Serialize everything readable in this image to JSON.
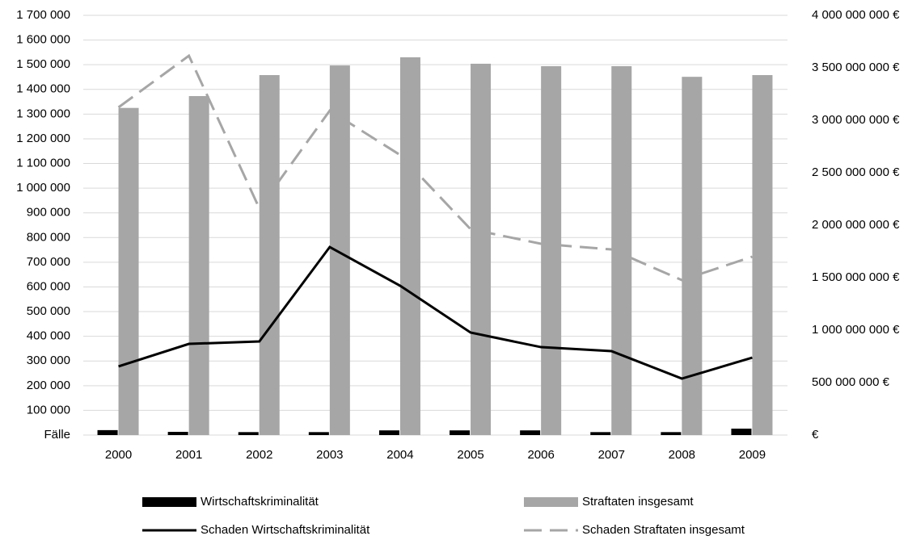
{
  "chart_data": {
    "type": "bar",
    "categories": [
      "2000",
      "2001",
      "2002",
      "2003",
      "2004",
      "2005",
      "2006",
      "2007",
      "2008",
      "2009"
    ],
    "series": [
      {
        "name": "Wirtschaftskriminalität",
        "type": "bar",
        "color": "#000000",
        "values": [
          20000,
          13000,
          12000,
          12000,
          19000,
          19000,
          19000,
          12000,
          12000,
          26000
        ]
      },
      {
        "name": "Straftaten insgesamt",
        "type": "bar",
        "color": "#a6a6a6",
        "values": [
          1325000,
          1373000,
          1458000,
          1497000,
          1530000,
          1504000,
          1494000,
          1494000,
          1451000,
          1458000
        ]
      },
      {
        "name": "Schaden Wirtschaftskriminalität",
        "type": "line",
        "axis": "y2",
        "color": "#000000",
        "dash": false,
        "values": [
          654000000,
          869000000,
          892000000,
          1792000000,
          1423000000,
          977000000,
          838000000,
          800000000,
          538000000,
          738000000
        ]
      },
      {
        "name": "Schaden Straftaten insgesamt",
        "type": "line",
        "axis": "y2",
        "color": "#a6a6a6",
        "dash": true,
        "values": [
          3123000000,
          3615000000,
          2161000000,
          3092000000,
          2669000000,
          1962000000,
          1823000000,
          1769000000,
          1477000000,
          1700000000
        ]
      }
    ],
    "ylim": [
      0,
      1700000
    ],
    "yticks": [
      {
        "value": 0,
        "label": "Fälle"
      },
      {
        "value": 100000,
        "label": "100 000"
      },
      {
        "value": 200000,
        "label": "200 000"
      },
      {
        "value": 300000,
        "label": "300 000"
      },
      {
        "value": 400000,
        "label": "400 000"
      },
      {
        "value": 500000,
        "label": "500 000"
      },
      {
        "value": 600000,
        "label": "600 000"
      },
      {
        "value": 700000,
        "label": "700 000"
      },
      {
        "value": 800000,
        "label": "800 000"
      },
      {
        "value": 900000,
        "label": "900 000"
      },
      {
        "value": 1000000,
        "label": "1 000 000"
      },
      {
        "value": 1100000,
        "label": "1 100 000"
      },
      {
        "value": 1200000,
        "label": "1 200 000"
      },
      {
        "value": 1300000,
        "label": "1 300 000"
      },
      {
        "value": 1400000,
        "label": "1 400 000"
      },
      {
        "value": 1500000,
        "label": "1 500 000"
      },
      {
        "value": 1600000,
        "label": "1 600 000"
      },
      {
        "value": 1700000,
        "label": "1 700 000"
      }
    ],
    "y2lim": [
      0,
      4000000000
    ],
    "y2ticks": [
      {
        "value": 0,
        "label": "€"
      },
      {
        "value": 500000000,
        "label": "500 000 000 €"
      },
      {
        "value": 1000000000,
        "label": "1 000 000 000 €"
      },
      {
        "value": 1500000000,
        "label": "1 500 000 000 €"
      },
      {
        "value": 2000000000,
        "label": "2 000 000 000 €"
      },
      {
        "value": 2500000000,
        "label": "2 500 000 000 €"
      },
      {
        "value": 3000000000,
        "label": "3 000 000 000 €"
      },
      {
        "value": 3500000000,
        "label": "3 500 000 000 €"
      },
      {
        "value": 4000000000,
        "label": "4 000 000 000 €"
      }
    ],
    "grid": true
  }
}
